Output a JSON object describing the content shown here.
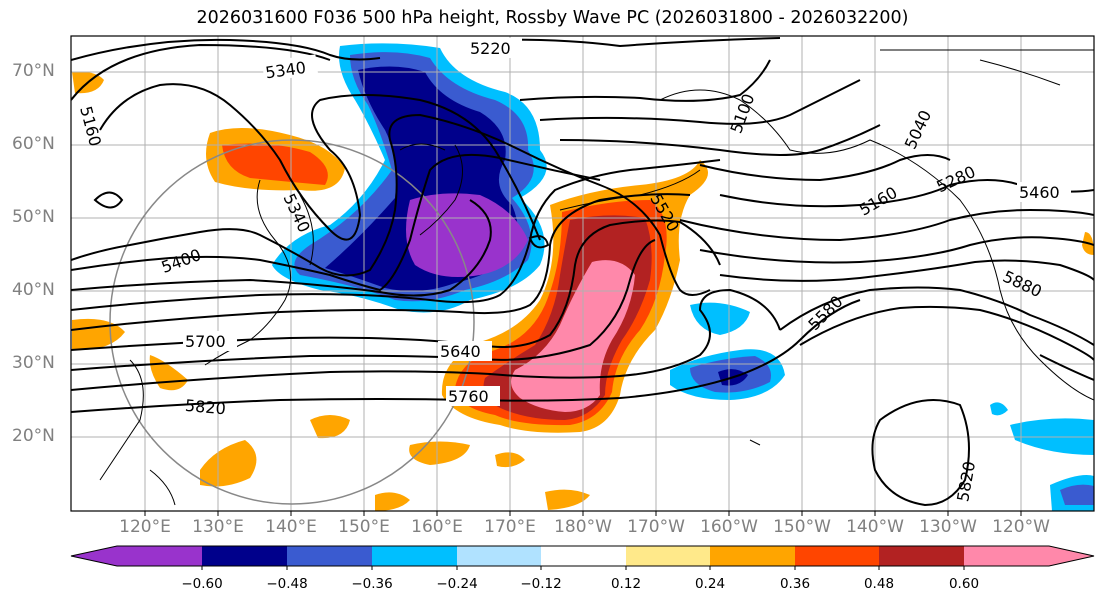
{
  "title": "2026031600 F036 500 hPa height, Rossby Wave PC (2026031800 - 2026032200)",
  "map": {
    "lat_labels": [
      "70°N",
      "60°N",
      "50°N",
      "40°N",
      "30°N",
      "20°N"
    ],
    "lon_labels": [
      "120°E",
      "130°E",
      "140°E",
      "150°E",
      "160°E",
      "170°E",
      "180°W",
      "170°W",
      "160°W",
      "150°W",
      "140°W",
      "130°W",
      "120°W"
    ],
    "contour_labels": [
      "5220",
      "5340",
      "5160",
      "5100",
      "5040",
      "5160",
      "5280",
      "5460",
      "5400",
      "5340",
      "5520",
      "5580",
      "5880",
      "5700",
      "5640",
      "5760",
      "5820",
      "5820"
    ]
  },
  "colorbar": {
    "ticks": [
      "−0.60",
      "−0.48",
      "−0.36",
      "−0.24",
      "−0.12",
      "0.12",
      "0.24",
      "0.36",
      "0.48",
      "0.60"
    ],
    "colors": [
      "#9933cc",
      "#00008b",
      "#3a5bd0",
      "#00bfff",
      "#b0e2ff",
      "#ffffff",
      "#ffe98a",
      "#ffa500",
      "#ff4500",
      "#b22222",
      "#ff88aa"
    ]
  }
}
